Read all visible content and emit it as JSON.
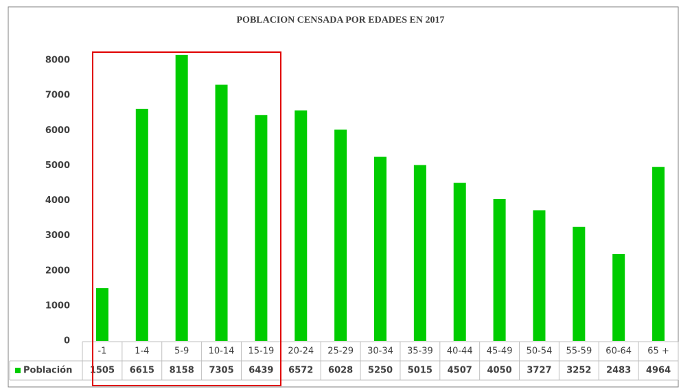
{
  "chart_data": {
    "type": "bar",
    "title": "POBLACION CENSADA POR EDADES EN 2017",
    "categories": [
      "-1",
      "1-4",
      "5-9",
      "10-14",
      "15-19",
      "20-24",
      "25-29",
      "30-34",
      "35-39",
      "40-44",
      "45-49",
      "50-54",
      "55-59",
      "60-64",
      "65 +"
    ],
    "series": [
      {
        "name": "Población",
        "color": "#00cc00",
        "values": [
          1505,
          6615,
          8158,
          7305,
          6439,
          6572,
          6028,
          5250,
          5015,
          4507,
          4050,
          3727,
          3252,
          2483,
          4964
        ]
      }
    ],
    "ylim": [
      0,
      8000
    ],
    "yticks": [
      0,
      1000,
      2000,
      3000,
      4000,
      5000,
      6000,
      7000,
      8000
    ],
    "grid": false,
    "data_table": true
  }
}
